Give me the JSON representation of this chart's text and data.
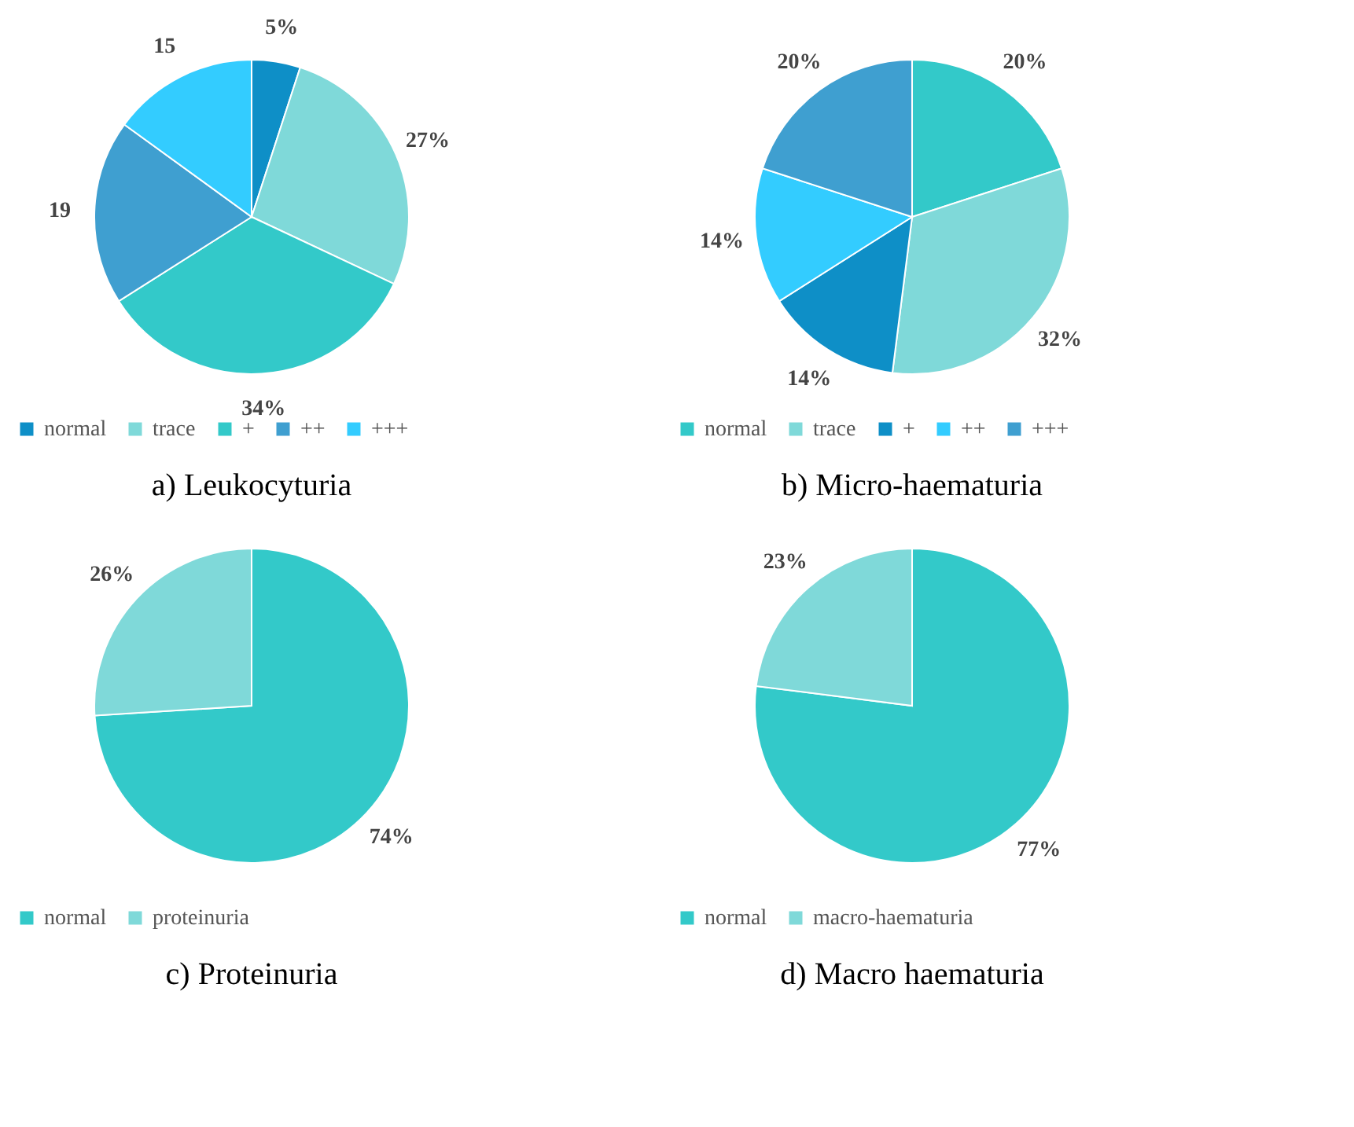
{
  "chart_data": [
    {
      "type": "pie",
      "title": "a) Leukocyturia",
      "categories": [
        "normal",
        "trace",
        "+",
        "++",
        "+++"
      ],
      "values": [
        5,
        27,
        34,
        19,
        15
      ],
      "value_labels": [
        "5%",
        "27%",
        "34%",
        "19",
        "15"
      ],
      "colors": [
        "#0e8fc7",
        "#7fd9d9",
        "#33c9c9",
        "#3f9fd0",
        "#33ccff"
      ],
      "legend": "bottom"
    },
    {
      "type": "pie",
      "title": "b) Micro-haematuria",
      "categories": [
        "normal",
        "trace",
        "+",
        "++",
        "+++"
      ],
      "values": [
        20,
        32,
        14,
        14,
        20
      ],
      "value_labels": [
        "20%",
        "32%",
        "14%",
        "14%",
        "20%"
      ],
      "colors": [
        "#33c9c9",
        "#7fd9d9",
        "#0e8fc7",
        "#33ccff",
        "#3f9fd0"
      ],
      "legend": "bottom"
    },
    {
      "type": "pie",
      "title": "c) Proteinuria",
      "categories": [
        "normal",
        "proteinuria"
      ],
      "values": [
        74,
        26
      ],
      "value_labels": [
        "74%",
        "26%"
      ],
      "colors": [
        "#33c9c9",
        "#7fd9d9"
      ],
      "legend": "bottom"
    },
    {
      "type": "pie",
      "title": "d) Macro haematuria",
      "categories": [
        "normal",
        "macro-haematuria"
      ],
      "values": [
        77,
        23
      ],
      "value_labels": [
        "77%",
        "23%"
      ],
      "colors": [
        "#33c9c9",
        "#7fd9d9"
      ],
      "legend": "bottom"
    }
  ]
}
